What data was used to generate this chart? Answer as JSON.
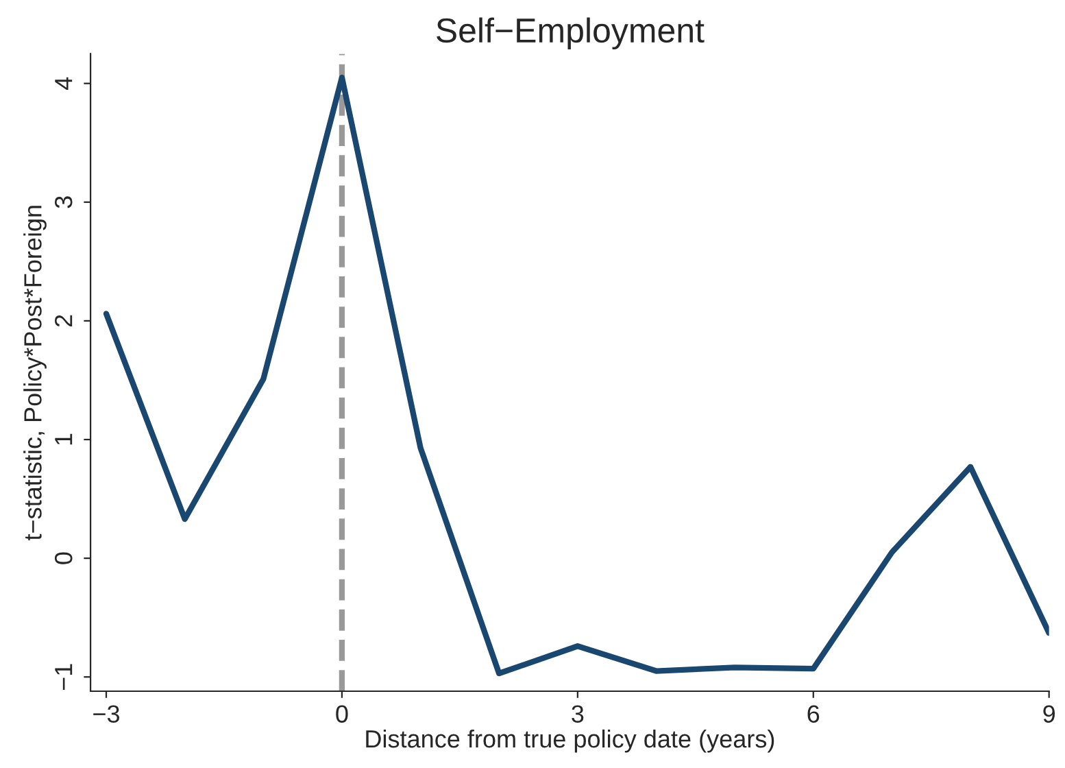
{
  "chart_data": {
    "type": "line",
    "title": "Self−Employment",
    "xlabel": "Distance from true policy date (years)",
    "ylabel": "t−statistic, Policy*Post*Foreign",
    "x": [
      -3,
      -2,
      -1,
      0,
      1,
      2,
      3,
      4,
      5,
      6,
      7,
      8,
      9
    ],
    "series": [
      {
        "color": "#1a476f",
        "values": [
          2.06,
          0.33,
          1.51,
          4.05,
          0.93,
          -0.97,
          -0.74,
          -0.95,
          -0.92,
          -0.93,
          0.05,
          0.77,
          -0.63
        ]
      }
    ],
    "xlim": [
      -3.2,
      9
    ],
    "ylim": [
      -1.12,
      4.25
    ],
    "xticks": [
      -3,
      0,
      3,
      6,
      9
    ],
    "yticks": [
      -1,
      0,
      1,
      2,
      3,
      4
    ],
    "ref_lines": [
      {
        "axis": "x",
        "value": 0,
        "color": "#999999",
        "line_style": "dashed"
      }
    ],
    "grid": false,
    "marker": "none",
    "line_style": "solid"
  }
}
